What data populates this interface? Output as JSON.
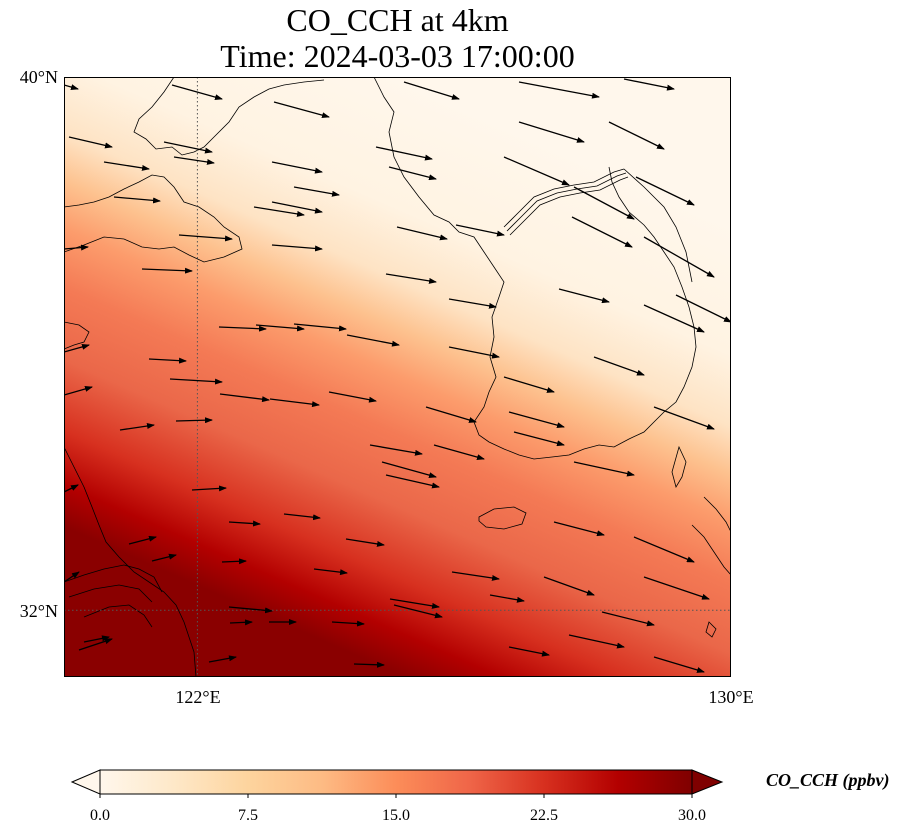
{
  "title": {
    "line1": "CO_CCH at 4km",
    "line2": "Time: 2024-03-03 17:00:00"
  },
  "map": {
    "lon_range": [
      120,
      130
    ],
    "lat_range": [
      31,
      40
    ],
    "gridlines": {
      "lon": [
        122
      ],
      "lat": [
        32
      ],
      "style": "dotted"
    },
    "lat_labels": [
      {
        "lat": 40,
        "text": "40°N"
      },
      {
        "lat": 32,
        "text": "32°N"
      }
    ],
    "lon_labels": [
      {
        "lon": 122,
        "text": "122°E"
      },
      {
        "lon": 130,
        "text": "130°E"
      }
    ],
    "field_name": "CO_CCH",
    "field_max": 30,
    "field_description_colors": "OrRd",
    "wind_vectors": true
  },
  "colorbar": {
    "label": "CO_CCH (ppbv)",
    "min": 0,
    "max": 30,
    "ticks": [
      "0.0",
      "7.5",
      "15.0",
      "22.5",
      "30.0"
    ],
    "colors": [
      "#fff7ec",
      "#fee8c8",
      "#fdd49e",
      "#fdbb84",
      "#fc8d59",
      "#ef6548",
      "#d7301f",
      "#b30000",
      "#7f0000"
    ],
    "extend": "both"
  }
}
